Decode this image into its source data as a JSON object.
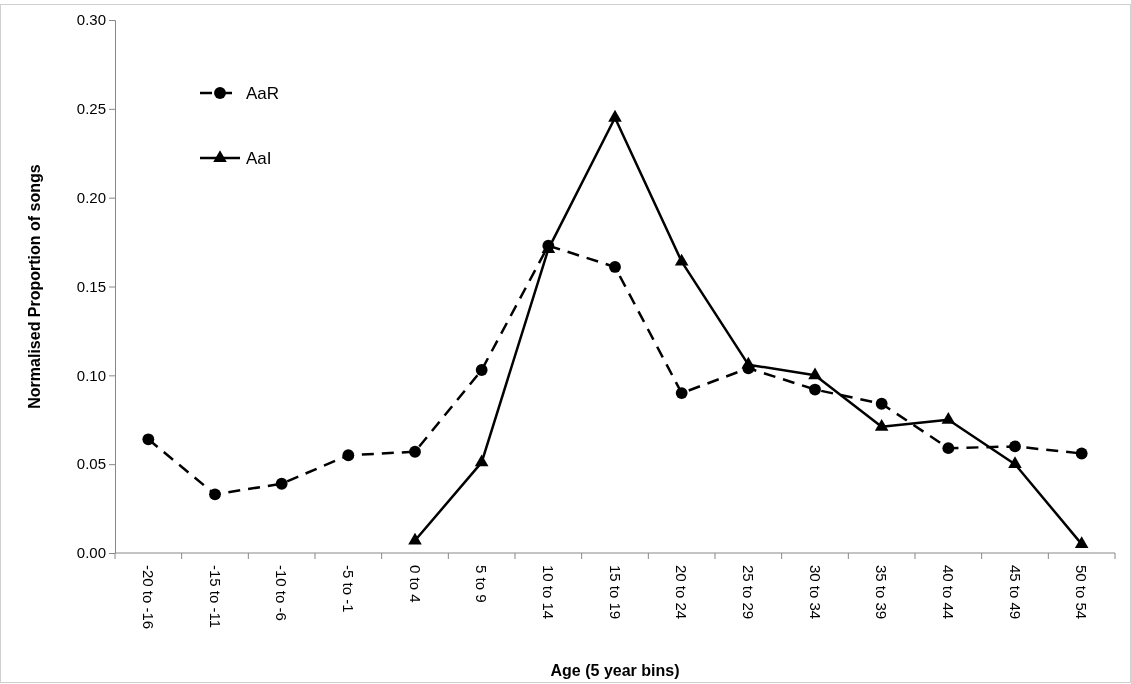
{
  "chart_data": {
    "type": "line",
    "xlabel": "Age (5 year bins)",
    "ylabel": "Normalised Proportion of songs",
    "categories": [
      "-20 to -16",
      "-15 to -11",
      "-10 to -6",
      "-5 to -1",
      "0 to 4",
      "5 to 9",
      "10 to 14",
      "15 to 19",
      "20 to 24",
      "25 to 29",
      "30 to 34",
      "35 to 39",
      "40 to 44",
      "45 to 49",
      "50 to 54"
    ],
    "series": [
      {
        "name": "AaR",
        "color": "#000000",
        "marker": "circle",
        "line_style": "dashed",
        "values": [
          0.064,
          0.033,
          0.039,
          0.055,
          0.057,
          0.103,
          0.173,
          0.161,
          0.09,
          0.104,
          0.092,
          0.084,
          0.059,
          0.06,
          0.056
        ]
      },
      {
        "name": "AaI",
        "color": "#000000",
        "marker": "triangle",
        "line_style": "solid",
        "values": [
          null,
          null,
          null,
          null,
          0.007,
          0.051,
          0.171,
          0.245,
          0.164,
          0.106,
          0.1,
          0.071,
          0.075,
          0.05,
          0.005
        ]
      }
    ],
    "ylim": [
      0,
      0.3
    ],
    "yticks": [
      {
        "value": 0,
        "label": "0.00"
      },
      {
        "value": 0.05,
        "label": "0.05"
      },
      {
        "value": 0.1,
        "label": "0.10"
      },
      {
        "value": 0.15,
        "label": "0.15"
      },
      {
        "value": 0.2,
        "label": "0.20"
      },
      {
        "value": 0.25,
        "label": "0.25"
      },
      {
        "value": 0.3,
        "label": "0.30"
      }
    ],
    "grid": false,
    "legend": "top left"
  }
}
